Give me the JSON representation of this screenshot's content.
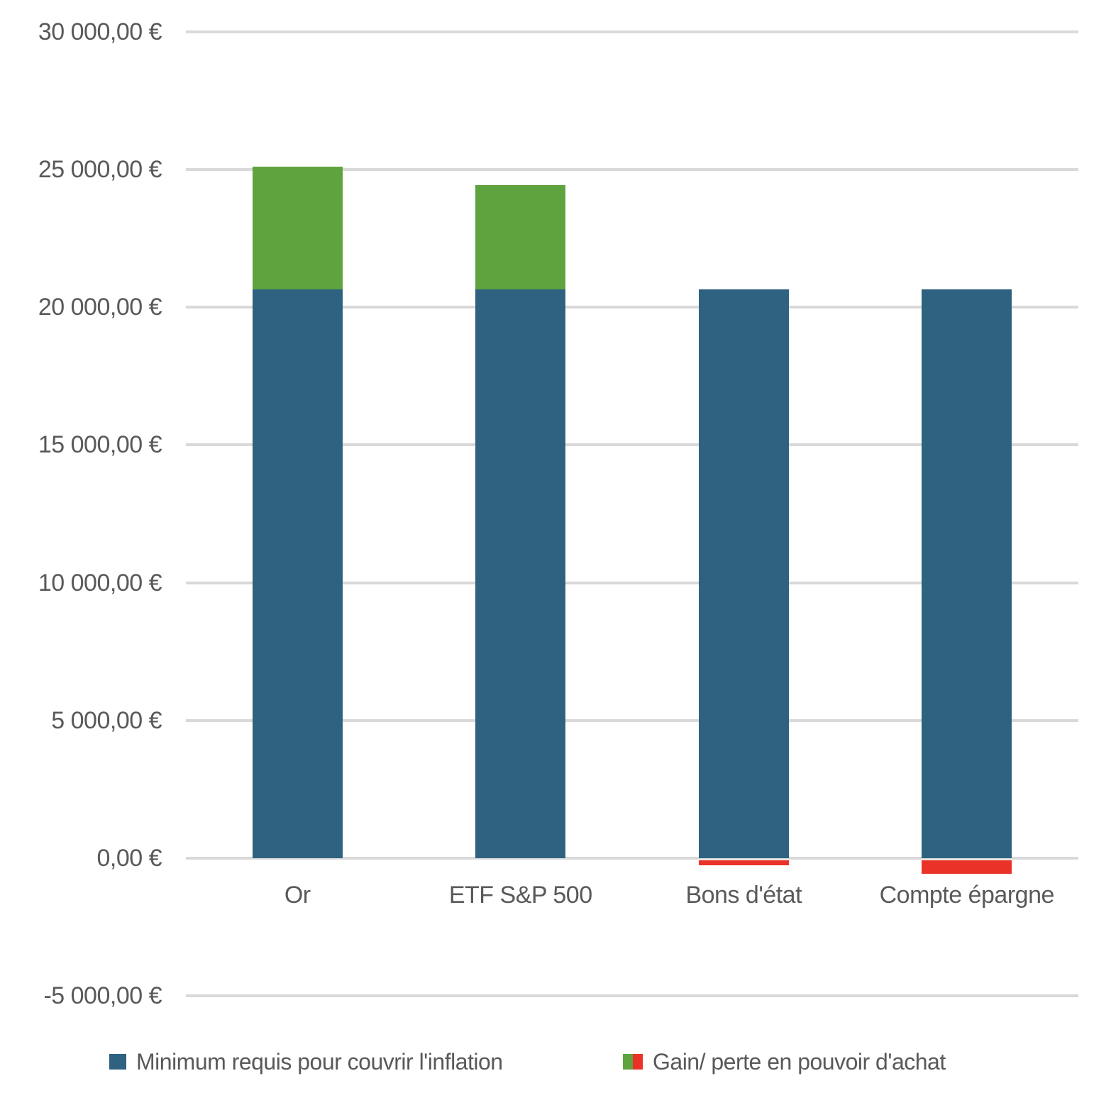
{
  "colors": {
    "blue": "#2F6280",
    "green": "#5FA33E",
    "red": "#EB3228",
    "grid": "#D9D9D9",
    "text": "#595959",
    "background": "#FFFFFF"
  },
  "chart_data": {
    "type": "bar",
    "stacked": true,
    "title": "",
    "xlabel": "",
    "ylabel": "",
    "grid": true,
    "legend_position": "bottom",
    "categories": [
      "Or",
      "ETF S&P 500",
      "Bons d'état",
      "Compte épargne"
    ],
    "series": [
      {
        "name": "Minimum requis pour couvrir l'inflation",
        "role": "base",
        "color": "#2F6280",
        "values": [
          20650,
          20650,
          20650,
          20650
        ]
      },
      {
        "name": "Gain/ perte en pouvoir d'achat",
        "role": "delta",
        "color_positive": "#5FA33E",
        "color_negative": "#EB3228",
        "values": [
          4460,
          3790,
          -250,
          -560
        ]
      }
    ],
    "totals": [
      25110,
      24440,
      20400,
      20090
    ],
    "y_axis": {
      "min": -5000,
      "max": 30000,
      "step": 5000,
      "unit": "€",
      "tick_labels": [
        "30 000,00 €",
        "25 000,00 €",
        "20 000,00 €",
        "15 000,00 €",
        "10 000,00 €",
        "5 000,00 €",
        "0,00 €",
        "-5 000,00 €"
      ]
    },
    "legend": [
      {
        "label": "Minimum requis pour couvrir l'inflation",
        "swatch": "blue"
      },
      {
        "label": "Gain/ perte en pouvoir d'achat",
        "swatch": "green-red"
      }
    ]
  }
}
